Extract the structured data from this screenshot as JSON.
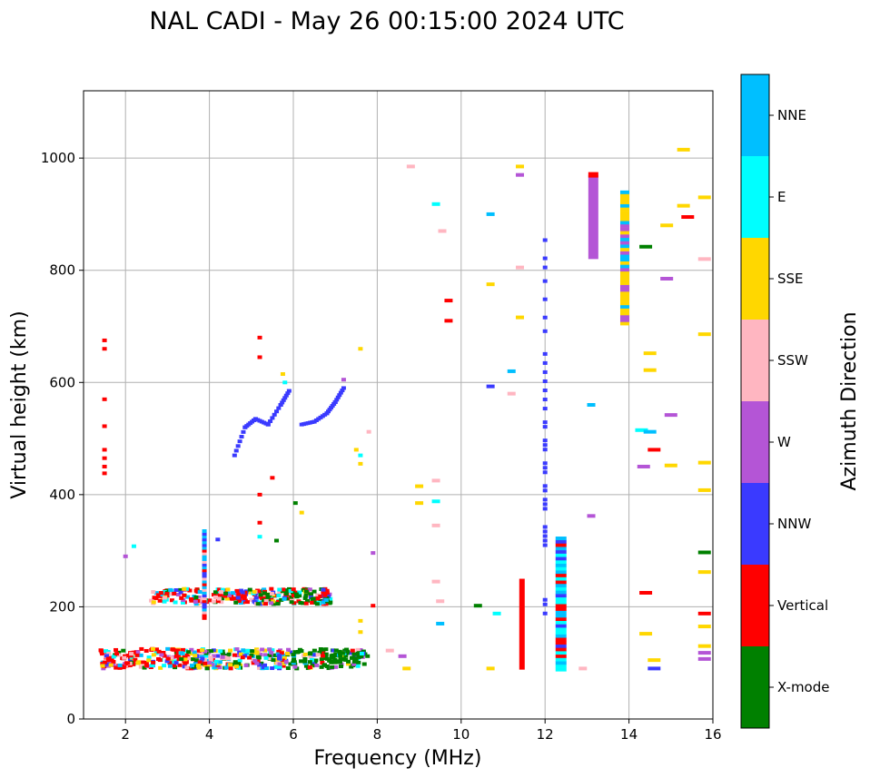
{
  "chart_data": {
    "type": "scatter",
    "title": "NAL CADI - May 26 00:15:00 2024 UTC",
    "xlabel": "Frequency (MHz)",
    "ylabel": "Virtual height (km)",
    "xlim": [
      1,
      16
    ],
    "ylim": [
      0,
      1120
    ],
    "xticks": [
      2,
      4,
      6,
      8,
      10,
      12,
      14,
      16
    ],
    "yticks": [
      0,
      200,
      400,
      600,
      800,
      1000
    ],
    "grid": true,
    "colorbar": {
      "label": "Azimuth Direction",
      "categories": [
        {
          "name": "X-mode",
          "color": "#008000"
        },
        {
          "name": "Vertical",
          "color": "#ff0000"
        },
        {
          "name": "NNW",
          "color": "#3a3aff"
        },
        {
          "name": "W",
          "color": "#b455d6"
        },
        {
          "name": "SSW",
          "color": "#ffb6c1"
        },
        {
          "name": "SSE",
          "color": "#ffd700"
        },
        {
          "name": "E",
          "color": "#00ffff"
        },
        {
          "name": "NNE",
          "color": "#00bfff"
        }
      ]
    },
    "bars": [
      {
        "dir": "Vertical",
        "x": 11.45,
        "y0": 88,
        "y1": 250
      },
      {
        "dir": "W",
        "x": 13.15,
        "y0": 820,
        "y1": 970
      },
      {
        "dir": "SSE",
        "x": 13.9,
        "y0": 705,
        "y1": 940
      },
      {
        "dir": "NNE",
        "x": 12.38,
        "y0": 88,
        "y1": 325
      },
      {
        "dir": "NNE",
        "x": 3.88,
        "y0": 180,
        "y1": 335
      }
    ],
    "traces": [
      {
        "dir": "NNW",
        "points": [
          [
            4.6,
            470
          ],
          [
            4.85,
            520
          ],
          [
            5.1,
            535
          ],
          [
            5.4,
            525
          ],
          [
            5.7,
            560
          ],
          [
            5.9,
            585
          ]
        ]
      },
      {
        "dir": "NNW",
        "points": [
          [
            6.2,
            525
          ],
          [
            6.5,
            530
          ],
          [
            6.8,
            545
          ],
          [
            7.0,
            565
          ],
          [
            7.2,
            590
          ]
        ]
      },
      {
        "dir": "NNW",
        "points": [
          [
            12.0,
            180
          ],
          [
            12.0,
            870
          ]
        ]
      }
    ],
    "clusters": [
      {
        "name": "E-layer echoes",
        "x_range": [
          1.4,
          7.8
        ],
        "y_range": [
          90,
          125
        ],
        "dirs": [
          "X-mode",
          "Vertical",
          "NNW",
          "W",
          "SSW",
          "SSE",
          "E",
          "NNE"
        ]
      },
      {
        "name": "F-layer echoes",
        "x_range": [
          2.6,
          6.9
        ],
        "y_range": [
          205,
          232
        ],
        "dirs": [
          "X-mode",
          "Vertical",
          "NNW",
          "W",
          "SSW",
          "SSE",
          "E",
          "NNE"
        ]
      }
    ],
    "scattered_points": [
      {
        "dir": "Vertical",
        "x": 1.5,
        "y": 675
      },
      {
        "dir": "Vertical",
        "x": 1.5,
        "y": 660
      },
      {
        "dir": "Vertical",
        "x": 1.5,
        "y": 570
      },
      {
        "dir": "Vertical",
        "x": 1.5,
        "y": 522
      },
      {
        "dir": "Vertical",
        "x": 1.5,
        "y": 480
      },
      {
        "dir": "Vertical",
        "x": 1.5,
        "y": 465
      },
      {
        "dir": "Vertical",
        "x": 1.5,
        "y": 450
      },
      {
        "dir": "Vertical",
        "x": 1.5,
        "y": 438
      },
      {
        "dir": "W",
        "x": 2.0,
        "y": 290
      },
      {
        "dir": "E",
        "x": 2.2,
        "y": 308
      },
      {
        "dir": "Vertical",
        "x": 5.2,
        "y": 680
      },
      {
        "dir": "Vertical",
        "x": 5.2,
        "y": 645
      },
      {
        "dir": "SSE",
        "x": 5.75,
        "y": 615
      },
      {
        "dir": "E",
        "x": 5.8,
        "y": 600
      },
      {
        "dir": "Vertical",
        "x": 5.5,
        "y": 430
      },
      {
        "dir": "Vertical",
        "x": 5.2,
        "y": 400
      },
      {
        "dir": "Vertical",
        "x": 5.2,
        "y": 350
      },
      {
        "dir": "E",
        "x": 5.2,
        "y": 325
      },
      {
        "dir": "X-mode",
        "x": 5.6,
        "y": 318
      },
      {
        "dir": "X-mode",
        "x": 6.05,
        "y": 385
      },
      {
        "dir": "SSE",
        "x": 6.2,
        "y": 368
      },
      {
        "dir": "NNW",
        "x": 4.2,
        "y": 320
      },
      {
        "dir": "W",
        "x": 7.2,
        "y": 605
      },
      {
        "dir": "SSE",
        "x": 7.6,
        "y": 660
      },
      {
        "dir": "SSE",
        "x": 7.5,
        "y": 480
      },
      {
        "dir": "SSE",
        "x": 7.6,
        "y": 455
      },
      {
        "dir": "E",
        "x": 7.6,
        "y": 470
      },
      {
        "dir": "SSW",
        "x": 7.8,
        "y": 512
      },
      {
        "dir": "W",
        "x": 7.9,
        "y": 296
      },
      {
        "dir": "Vertical",
        "x": 7.9,
        "y": 202
      },
      {
        "dir": "SSE",
        "x": 7.6,
        "y": 175
      },
      {
        "dir": "SSE",
        "x": 7.6,
        "y": 155
      },
      {
        "dir": "SSW",
        "x": 8.8,
        "y": 985
      },
      {
        "dir": "SSE",
        "x": 9.0,
        "y": 415
      },
      {
        "dir": "SSE",
        "x": 9.0,
        "y": 385
      },
      {
        "dir": "SSW",
        "x": 9.4,
        "y": 425
      },
      {
        "dir": "E",
        "x": 9.4,
        "y": 388
      },
      {
        "dir": "SSW",
        "x": 9.4,
        "y": 345
      },
      {
        "dir": "SSW",
        "x": 9.4,
        "y": 245
      },
      {
        "dir": "SSW",
        "x": 9.5,
        "y": 210
      },
      {
        "dir": "NNE",
        "x": 9.5,
        "y": 170
      },
      {
        "dir": "E",
        "x": 9.4,
        "y": 918
      },
      {
        "dir": "SSW",
        "x": 9.55,
        "y": 870
      },
      {
        "dir": "Vertical",
        "x": 9.7,
        "y": 746
      },
      {
        "dir": "Vertical",
        "x": 9.7,
        "y": 710
      },
      {
        "dir": "SSE",
        "x": 8.7,
        "y": 90
      },
      {
        "dir": "W",
        "x": 8.6,
        "y": 112
      },
      {
        "dir": "SSW",
        "x": 8.3,
        "y": 122
      },
      {
        "dir": "NNE",
        "x": 10.7,
        "y": 900
      },
      {
        "dir": "SSE",
        "x": 10.7,
        "y": 775
      },
      {
        "dir": "NNW",
        "x": 10.7,
        "y": 593
      },
      {
        "dir": "X-mode",
        "x": 10.4,
        "y": 202
      },
      {
        "dir": "E",
        "x": 10.85,
        "y": 188
      },
      {
        "dir": "SSE",
        "x": 10.7,
        "y": 90
      },
      {
        "dir": "SSE",
        "x": 11.4,
        "y": 985
      },
      {
        "dir": "W",
        "x": 11.4,
        "y": 970
      },
      {
        "dir": "SSW",
        "x": 11.4,
        "y": 805
      },
      {
        "dir": "SSE",
        "x": 11.4,
        "y": 716
      },
      {
        "dir": "NNE",
        "x": 11.2,
        "y": 620
      },
      {
        "dir": "SSW",
        "x": 11.2,
        "y": 580
      },
      {
        "dir": "NNE",
        "x": 13.1,
        "y": 560
      },
      {
        "dir": "W",
        "x": 13.1,
        "y": 362
      },
      {
        "dir": "SSW",
        "x": 12.9,
        "y": 90
      },
      {
        "dir": "X-mode",
        "x": 14.4,
        "y": 842
      },
      {
        "dir": "SSE",
        "x": 14.5,
        "y": 652
      },
      {
        "dir": "SSE",
        "x": 14.5,
        "y": 622
      },
      {
        "dir": "E",
        "x": 14.3,
        "y": 515
      },
      {
        "dir": "NNE",
        "x": 14.5,
        "y": 512
      },
      {
        "dir": "W",
        "x": 14.35,
        "y": 450
      },
      {
        "dir": "Vertical",
        "x": 14.6,
        "y": 480
      },
      {
        "dir": "Vertical",
        "x": 14.4,
        "y": 225
      },
      {
        "dir": "SSE",
        "x": 14.4,
        "y": 152
      },
      {
        "dir": "SSE",
        "x": 14.6,
        "y": 105
      },
      {
        "dir": "NNW",
        "x": 14.6,
        "y": 90
      },
      {
        "dir": "W",
        "x": 14.9,
        "y": 785
      },
      {
        "dir": "W",
        "x": 15.0,
        "y": 542
      },
      {
        "dir": "SSE",
        "x": 15.0,
        "y": 452
      },
      {
        "dir": "SSE",
        "x": 14.9,
        "y": 880
      },
      {
        "dir": "Vertical",
        "x": 15.4,
        "y": 895
      },
      {
        "dir": "SSE",
        "x": 15.3,
        "y": 915
      },
      {
        "dir": "SSE",
        "x": 15.3,
        "y": 1015
      },
      {
        "dir": "SSE",
        "x": 15.8,
        "y": 930
      },
      {
        "dir": "SSW",
        "x": 15.8,
        "y": 820
      },
      {
        "dir": "SSE",
        "x": 15.8,
        "y": 686
      },
      {
        "dir": "SSE",
        "x": 15.8,
        "y": 457
      },
      {
        "dir": "SSE",
        "x": 15.8,
        "y": 408
      },
      {
        "dir": "X-mode",
        "x": 15.8,
        "y": 297
      },
      {
        "dir": "SSE",
        "x": 15.8,
        "y": 262
      },
      {
        "dir": "Vertical",
        "x": 15.8,
        "y": 188
      },
      {
        "dir": "SSE",
        "x": 15.8,
        "y": 165
      },
      {
        "dir": "SSE",
        "x": 15.8,
        "y": 130
      },
      {
        "dir": "W",
        "x": 15.8,
        "y": 118
      },
      {
        "dir": "W",
        "x": 15.8,
        "y": 107
      }
    ]
  }
}
